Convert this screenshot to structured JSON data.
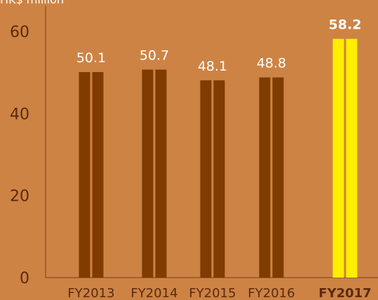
{
  "unit_label": "HK$ million",
  "colors": {
    "background": "#cd8344",
    "bar": "#7f3b00",
    "highlight_bar": "#ffee00",
    "bar_label": "#ffffff",
    "tick_label": "#5b2a0f",
    "axis": "#7a3d17"
  },
  "chart_data": {
    "type": "bar",
    "categories": [
      "FY2013",
      "FY2014",
      "FY2015",
      "FY2016",
      "FY2017"
    ],
    "values": [
      50.1,
      50.7,
      48.1,
      48.8,
      58.2
    ],
    "value_labels": [
      "50.1",
      "50.7",
      "48.1",
      "48.8",
      "58.2"
    ],
    "highlight": "FY2017",
    "xlabel": "",
    "ylabel": "",
    "y_ticks": [
      0,
      20,
      40,
      60
    ],
    "ylim": [
      0,
      60
    ],
    "grid": false,
    "legend": "none"
  }
}
